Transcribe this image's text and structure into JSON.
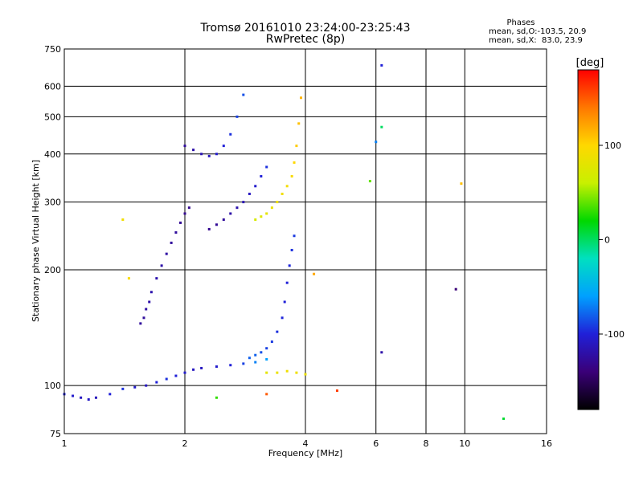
{
  "chart_data": {
    "type": "scatter",
    "title": "Tromsø 20161010 23:24:00-23:25:43",
    "subtitle": "RwPretec (8p)",
    "xlabel": "Frequency [MHz]",
    "ylabel": "Stationary phase Virtual Height [km]",
    "x_scale": "log",
    "y_scale": "log",
    "xlim": [
      1,
      16
    ],
    "ylim": [
      75,
      750
    ],
    "grid": true,
    "x_ticks": [
      1,
      2,
      4,
      6,
      8,
      10,
      16
    ],
    "y_ticks": [
      75,
      100,
      200,
      300,
      400,
      500,
      600,
      750
    ],
    "stats": {
      "title": "Phases",
      "line1": "mean, sd,O:-103.5, 20.9",
      "line2": "mean, sd,X:  83.0, 23.9"
    },
    "colorbar": {
      "label": "[deg]",
      "range": [
        -180,
        180
      ],
      "ticks": [
        100,
        0,
        -100
      ],
      "colors": [
        "#000000",
        "#3a0078",
        "#2020d8",
        "#00a0ff",
        "#00e0c0",
        "#00d800",
        "#c8f000",
        "#ffd800",
        "#ff7800",
        "#ff0000"
      ]
    },
    "series": [
      {
        "trace": "low-O",
        "x": [
          1.0,
          1.05,
          1.1,
          1.15,
          1.2,
          1.3,
          1.4,
          1.5,
          1.6,
          1.7,
          1.8,
          1.9,
          2.0,
          2.1,
          2.2,
          2.4,
          2.6,
          2.8,
          3.0,
          3.2
        ],
        "y": [
          95,
          94,
          93,
          92,
          93,
          95,
          98,
          99,
          100,
          102,
          104,
          106,
          108,
          110,
          111,
          112,
          113,
          114,
          115,
          117
        ],
        "phase": [
          -100,
          -105,
          -110,
          -108,
          -112,
          -100,
          -95,
          -105,
          -110,
          -100,
          -95,
          -100,
          -105,
          -110,
          -110,
          -105,
          -100,
          -90,
          -70,
          -60
        ]
      },
      {
        "trace": "lower-O",
        "x": [
          1.55,
          1.58,
          1.6,
          1.63,
          1.65,
          1.7,
          1.75,
          1.8,
          1.85,
          1.9,
          1.95,
          2.0,
          2.05
        ],
        "y": [
          145,
          150,
          158,
          165,
          175,
          190,
          205,
          220,
          235,
          250,
          265,
          280,
          290
        ],
        "phase": [
          -125,
          -125,
          -122,
          -120,
          -118,
          -118,
          -120,
          -122,
          -125,
          -125,
          -128,
          -130,
          -130
        ]
      },
      {
        "trace": "rising-O",
        "x": [
          2.9,
          3.0,
          3.1,
          3.2,
          3.3,
          3.4,
          3.5,
          3.55,
          3.6,
          3.65,
          3.7,
          3.75
        ],
        "y": [
          118,
          120,
          122,
          125,
          130,
          138,
          150,
          165,
          185,
          205,
          225,
          245
        ],
        "phase": [
          -80,
          -80,
          -85,
          -90,
          -92,
          -95,
          -98,
          -100,
          -100,
          -98,
          -95,
          -92
        ]
      },
      {
        "trace": "mid-O",
        "x": [
          2.3,
          2.4,
          2.5,
          2.6,
          2.7,
          2.8,
          2.9,
          3.0,
          3.1,
          3.2
        ],
        "y": [
          255,
          262,
          270,
          280,
          290,
          300,
          315,
          330,
          350,
          370
        ],
        "phase": [
          -130,
          -128,
          -125,
          -120,
          -118,
          -115,
          -110,
          -105,
          -100,
          -95
        ]
      },
      {
        "trace": "top-O",
        "x": [
          2.0,
          2.1,
          2.2,
          2.3,
          2.4,
          2.5,
          2.6,
          2.7,
          2.8
        ],
        "y": [
          420,
          410,
          400,
          395,
          400,
          420,
          450,
          500,
          570
        ],
        "phase": [
          -125,
          -120,
          -115,
          -110,
          -105,
          -100,
          -95,
          -90,
          -85
        ]
      },
      {
        "trace": "X-trace",
        "x": [
          3.0,
          3.1,
          3.2,
          3.3,
          3.4,
          3.5,
          3.6,
          3.7,
          3.75,
          3.8,
          3.85,
          3.9
        ],
        "y": [
          270,
          275,
          280,
          290,
          300,
          315,
          330,
          350,
          380,
          420,
          480,
          560
        ],
        "phase": [
          70,
          75,
          80,
          85,
          88,
          90,
          92,
          95,
          100,
          105,
          110,
          115
        ]
      },
      {
        "trace": "X-low",
        "x": [
          3.2,
          3.4,
          3.6,
          3.8,
          4.0
        ],
        "y": [
          108,
          108,
          109,
          108,
          107
        ],
        "phase": [
          80,
          85,
          90,
          88,
          86
        ]
      },
      {
        "trace": "scattered",
        "x": [
          1.4,
          1.45,
          2.4,
          3.2,
          4.8,
          5.8,
          6.0,
          6.2,
          6.2,
          6.2,
          9.8,
          9.5,
          12.5,
          4.2
        ],
        "y": [
          270,
          190,
          93,
          95,
          97,
          340,
          430,
          680,
          470,
          122,
          335,
          178,
          82,
          195
        ],
        "phase": [
          90,
          95,
          30,
          150,
          160,
          40,
          -70,
          -100,
          0,
          -120,
          110,
          -140,
          10,
          120
        ]
      }
    ]
  }
}
